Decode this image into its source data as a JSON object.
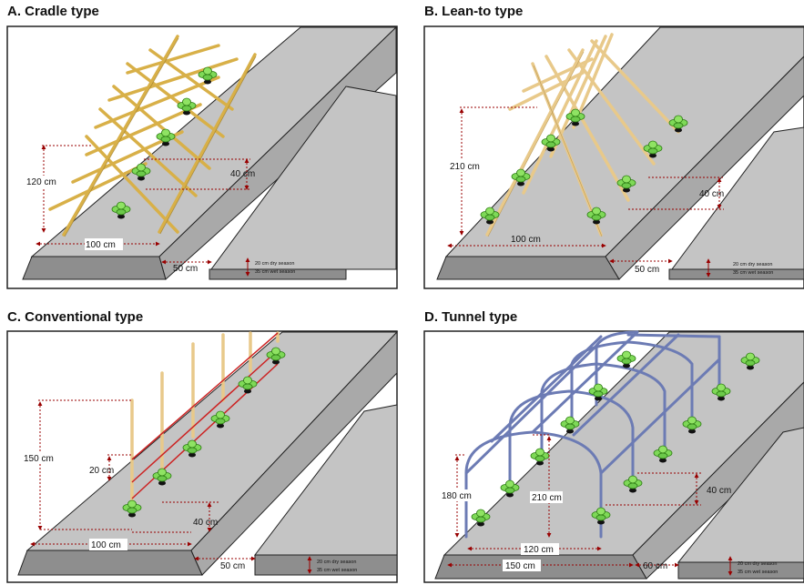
{
  "panels": {
    "a": {
      "title": "A.  Cradle type",
      "height": "120 cm",
      "width": "100 cm",
      "spacing": "40 cm",
      "path": "50 cm",
      "depth1": "20 cm dry season",
      "depth2": "35 cm wet season"
    },
    "b": {
      "title": "B.  Lean-to type",
      "height": "210 cm",
      "width": "100 cm",
      "spacing": "40 cm",
      "path": "50 cm",
      "depth1": "20 cm dry season",
      "depth2": "35 cm wet season"
    },
    "c": {
      "title": "C.  Conventional type",
      "height": "150 cm",
      "wire": "20 cm",
      "width": "100 cm",
      "spacing": "40 cm",
      "path": "50 cm",
      "depth1": "20 cm dry season",
      "depth2": "35 cm wet season"
    },
    "d": {
      "title": "D.  Tunnel type",
      "height_side": "180 cm",
      "height_top": "210 cm",
      "inner": "120 cm",
      "width": "150 cm",
      "spacing": "40 cm",
      "path": "60 cm",
      "depth1": "20 cm dry season",
      "depth2": "35 cm wet season"
    }
  },
  "colors": {
    "bed": "#c4c4c4",
    "bed_side": "#8e8e8e",
    "bamboo": "#d8b048",
    "bamboo_dark": "#9c7a22",
    "pole": "#e8c98a",
    "wire": "#cc2222",
    "tunnel": "#6c7bb4",
    "plant": "#7ed957",
    "measure": "#990000"
  }
}
